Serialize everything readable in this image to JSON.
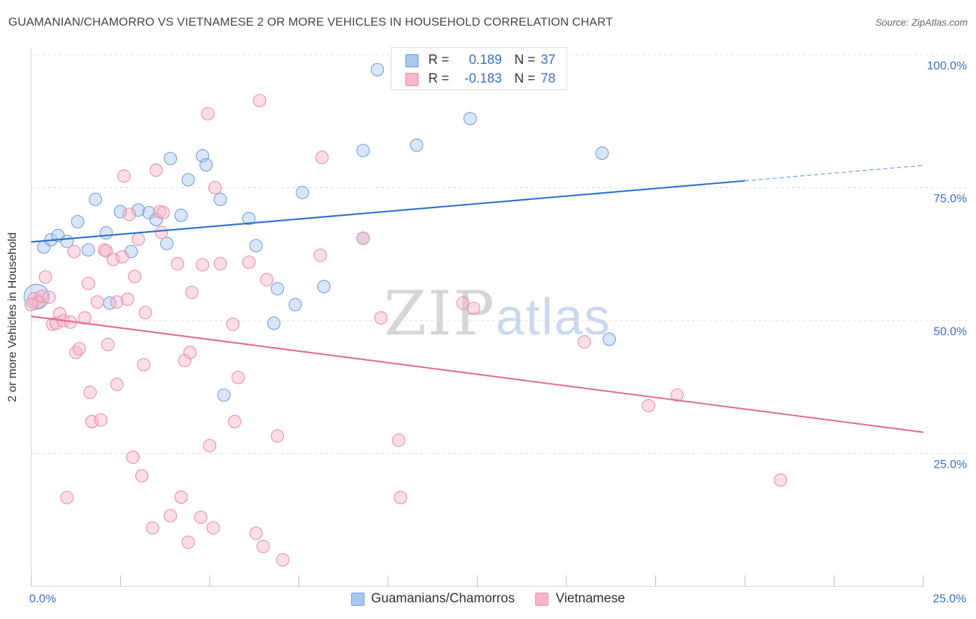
{
  "title": "GUAMANIAN/CHAMORRO VS VIETNAMESE 2 OR MORE VEHICLES IN HOUSEHOLD CORRELATION CHART",
  "source": "Source: ZipAtlas.com",
  "watermark": {
    "zip": "ZIP",
    "atlas": "atlas"
  },
  "colors": {
    "blue_fill": "#a9c7ef",
    "blue_stroke": "#6f9bd8",
    "blue_line": "#2d6fcb",
    "pink_fill": "#f6b6ca",
    "pink_stroke": "#e98aa8",
    "pink_line": "#e06b95",
    "tick_label": "#3d6fc5",
    "grid": "#dcdcdc"
  },
  "legend_top": [
    {
      "r_label": "R =",
      "r_value": "0.189",
      "n_label": "N =",
      "n_value": "37"
    },
    {
      "r_label": "R =",
      "r_value": "-0.183",
      "n_label": "N =",
      "n_value": "78"
    }
  ],
  "chart_data": {
    "type": "scatter",
    "title": "GUAMANIAN/CHAMORRO VS VIETNAMESE 2 OR MORE VEHICLES IN HOUSEHOLD CORRELATION CHART",
    "xlabel": "",
    "ylabel": "2 or more Vehicles in Household",
    "xlim": [
      0,
      25
    ],
    "ylim": [
      0,
      103
    ],
    "x_tick_labels": [
      "0.0%",
      "25.0%"
    ],
    "y_ticks": [
      25,
      50,
      75,
      100
    ],
    "y_tick_labels": [
      "25.0%",
      "50.0%",
      "75.0%",
      "100.0%"
    ],
    "grid": "horizontal dashed",
    "legend_position": "bottom-center",
    "series": [
      {
        "name": "Guamanians/Chamorros",
        "color": "#a9c7ef",
        "trend": {
          "x": [
            0,
            20
          ],
          "y": [
            64.8,
            76.3
          ],
          "dashed_to": [
            25,
            79.2
          ]
        },
        "points": [
          [
            0.15,
            54.5,
            18
          ],
          [
            0.35,
            63.8,
            9
          ],
          [
            0.55,
            65.2,
            9
          ],
          [
            0.75,
            66.0,
            9
          ],
          [
            1.0,
            64.9,
            9
          ],
          [
            1.3,
            68.6,
            9
          ],
          [
            1.6,
            63.3,
            9
          ],
          [
            1.8,
            72.8,
            9
          ],
          [
            2.1,
            66.5,
            9
          ],
          [
            2.2,
            53.3,
            9
          ],
          [
            2.5,
            70.5,
            9
          ],
          [
            2.8,
            63.0,
            9
          ],
          [
            3.0,
            70.8,
            9
          ],
          [
            3.3,
            70.3,
            9
          ],
          [
            3.5,
            69.0,
            9
          ],
          [
            3.8,
            64.5,
            9
          ],
          [
            3.9,
            80.5,
            9
          ],
          [
            4.2,
            69.8,
            9
          ],
          [
            4.4,
            76.5,
            9
          ],
          [
            4.8,
            81.0,
            9
          ],
          [
            4.9,
            79.3,
            9
          ],
          [
            5.3,
            72.8,
            9
          ],
          [
            5.4,
            36.0,
            9
          ],
          [
            6.1,
            69.2,
            9
          ],
          [
            6.3,
            64.1,
            9
          ],
          [
            6.8,
            49.5,
            9
          ],
          [
            6.9,
            56.0,
            9
          ],
          [
            7.4,
            53.0,
            9
          ],
          [
            7.6,
            74.1,
            9
          ],
          [
            8.2,
            56.4,
            9
          ],
          [
            9.3,
            65.5,
            9
          ],
          [
            9.3,
            82.0,
            9
          ],
          [
            9.7,
            97.2,
            9
          ],
          [
            10.8,
            83.0,
            9
          ],
          [
            12.3,
            88.0,
            9
          ],
          [
            16.0,
            81.5,
            9
          ],
          [
            16.2,
            46.5,
            9
          ]
        ]
      },
      {
        "name": "Vietnamese",
        "color": "#f6b6ca",
        "trend": {
          "x": [
            0,
            25
          ],
          "y": [
            50.8,
            29.0
          ]
        },
        "points": [
          [
            0.1,
            54.0,
            10
          ],
          [
            0.2,
            53.5,
            9
          ],
          [
            0.3,
            54.6,
            9
          ],
          [
            0.4,
            58.2,
            9
          ],
          [
            0.5,
            54.4,
            9
          ],
          [
            0.6,
            49.3,
            9
          ],
          [
            0.7,
            49.5,
            9
          ],
          [
            0.8,
            51.3,
            9
          ],
          [
            0.9,
            50.0,
            9
          ],
          [
            1.0,
            16.7,
            9
          ],
          [
            1.1,
            49.7,
            9
          ],
          [
            1.2,
            63.0,
            9
          ],
          [
            1.25,
            44.0,
            9
          ],
          [
            1.35,
            44.7,
            9
          ],
          [
            1.5,
            50.5,
            9
          ],
          [
            1.6,
            57.0,
            9
          ],
          [
            1.65,
            36.5,
            9
          ],
          [
            1.7,
            31.0,
            9
          ],
          [
            1.85,
            53.5,
            9
          ],
          [
            1.95,
            31.3,
            9
          ],
          [
            2.05,
            63.3,
            9
          ],
          [
            2.1,
            63.1,
            9
          ],
          [
            2.15,
            45.5,
            9
          ],
          [
            2.3,
            61.5,
            9
          ],
          [
            2.4,
            38.0,
            9
          ],
          [
            2.4,
            53.5,
            9
          ],
          [
            2.55,
            62.0,
            9
          ],
          [
            2.6,
            77.2,
            9
          ],
          [
            2.7,
            54.0,
            9
          ],
          [
            2.75,
            70.0,
            9
          ],
          [
            2.85,
            24.3,
            9
          ],
          [
            2.9,
            58.3,
            9
          ],
          [
            3.0,
            65.3,
            9
          ],
          [
            3.1,
            20.8,
            9
          ],
          [
            3.15,
            41.7,
            9
          ],
          [
            3.2,
            51.5,
            9
          ],
          [
            3.4,
            11.0,
            9
          ],
          [
            3.5,
            78.3,
            9
          ],
          [
            3.6,
            70.5,
            9
          ],
          [
            3.65,
            66.6,
            9
          ],
          [
            3.7,
            70.3,
            9
          ],
          [
            3.9,
            13.3,
            9
          ],
          [
            4.1,
            60.7,
            9
          ],
          [
            4.2,
            16.8,
            9
          ],
          [
            4.3,
            42.5,
            9
          ],
          [
            4.4,
            8.3,
            9
          ],
          [
            4.45,
            44.0,
            9
          ],
          [
            4.5,
            55.3,
            9
          ],
          [
            4.75,
            13.0,
            9
          ],
          [
            4.8,
            60.5,
            9
          ],
          [
            4.95,
            88.9,
            9
          ],
          [
            5.0,
            26.5,
            9
          ],
          [
            5.1,
            11.0,
            9
          ],
          [
            5.15,
            75.0,
            9
          ],
          [
            5.3,
            60.7,
            9
          ],
          [
            5.65,
            49.3,
            9
          ],
          [
            5.7,
            31.0,
            9
          ],
          [
            5.8,
            39.3,
            9
          ],
          [
            6.1,
            61.0,
            9
          ],
          [
            6.3,
            10.0,
            9
          ],
          [
            6.4,
            91.4,
            9
          ],
          [
            6.5,
            7.5,
            9
          ],
          [
            6.6,
            57.7,
            9
          ],
          [
            6.9,
            28.3,
            9
          ],
          [
            7.05,
            5.0,
            9
          ],
          [
            8.1,
            62.3,
            9
          ],
          [
            8.15,
            80.7,
            9
          ],
          [
            9.3,
            65.5,
            9
          ],
          [
            9.8,
            50.5,
            9
          ],
          [
            10.3,
            27.5,
            9
          ],
          [
            10.35,
            16.7,
            9
          ],
          [
            12.1,
            53.3,
            9
          ],
          [
            12.4,
            52.3,
            9
          ],
          [
            15.5,
            46.0,
            9
          ],
          [
            17.3,
            34.0,
            9
          ],
          [
            18.1,
            36.0,
            9
          ],
          [
            21.0,
            20.0,
            9
          ],
          [
            0.0,
            53.0,
            9
          ]
        ]
      }
    ]
  }
}
